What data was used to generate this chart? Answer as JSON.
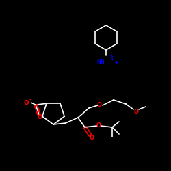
{
  "bg_color": "#000000",
  "bond_color": "#ffffff",
  "N_color": "#0000ff",
  "O_color": "#ff0000",
  "figsize": [
    2.5,
    2.5
  ],
  "dpi": 100,
  "NH3_text": "NH",
  "NH3_sub": "3",
  "NH3_sup": "+",
  "O_minus": "O",
  "O_label": "O",
  "bond_lw": 1.2
}
